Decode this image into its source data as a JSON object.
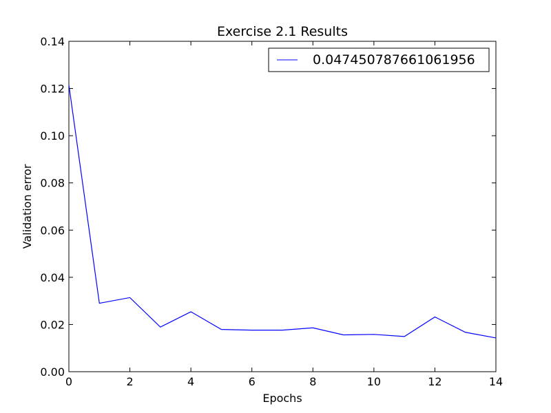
{
  "chart_data": {
    "type": "line",
    "title": "Exercise 2.1 Results",
    "xlabel": "Epochs",
    "ylabel": "Validation error",
    "xlim": [
      0,
      14
    ],
    "ylim": [
      0.0,
      0.14
    ],
    "xticks": [
      0,
      2,
      4,
      6,
      8,
      10,
      12,
      14
    ],
    "xtick_labels": [
      "0",
      "2",
      "4",
      "6",
      "8",
      "10",
      "12",
      "14"
    ],
    "yticks": [
      0.0,
      0.02,
      0.04,
      0.06,
      0.08,
      0.1,
      0.12,
      0.14
    ],
    "ytick_labels": [
      "0.00",
      "0.02",
      "0.04",
      "0.06",
      "0.08",
      "0.10",
      "0.12",
      "0.14"
    ],
    "grid": false,
    "legend_position": "top-right",
    "series": [
      {
        "name": "0.047450787661061956",
        "color": "#0000ff",
        "x": [
          0,
          1,
          2,
          3,
          4,
          5,
          6,
          7,
          8,
          9,
          10,
          11,
          12,
          13,
          14
        ],
        "y": [
          0.1215,
          0.029,
          0.0314,
          0.0189,
          0.0254,
          0.0179,
          0.0176,
          0.0176,
          0.0186,
          0.0156,
          0.0158,
          0.0149,
          0.0232,
          0.0167,
          0.0143
        ]
      }
    ]
  }
}
